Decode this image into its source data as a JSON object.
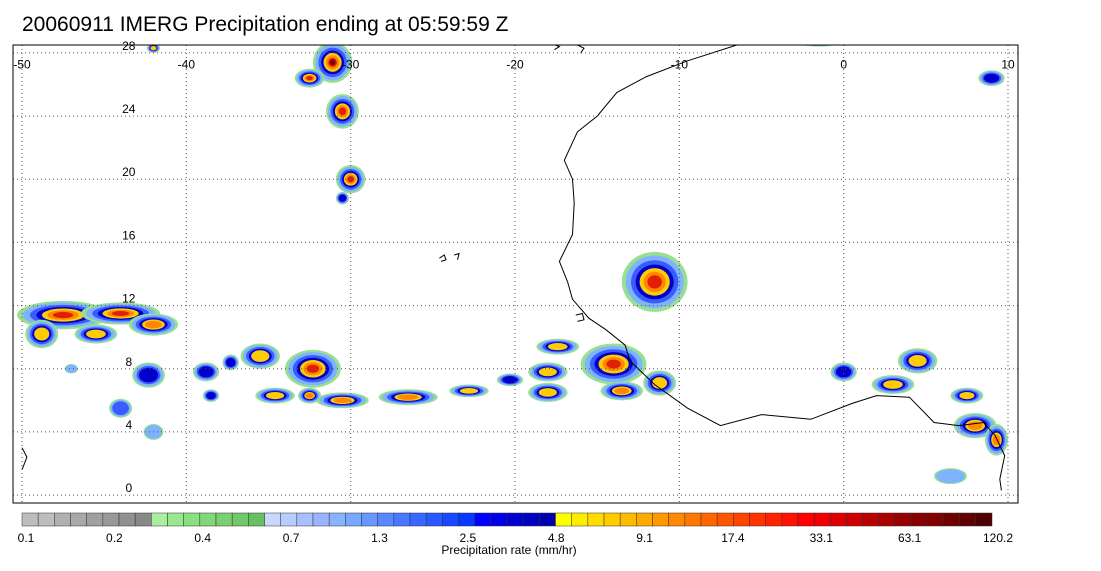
{
  "title": "20060911 IMERG Precipitation ending at 05:59:59 Z",
  "map": {
    "lon_range": [
      -50,
      10
    ],
    "lat_range": [
      -0.5,
      28.5
    ],
    "lon_ticks": [
      {
        "value": -50,
        "label": "-50"
      },
      {
        "value": -40,
        "label": "-40"
      },
      {
        "value": -30,
        "label": "-30"
      },
      {
        "value": -20,
        "label": "-20"
      },
      {
        "value": -10,
        "label": "-10"
      },
      {
        "value": 0,
        "label": "0"
      },
      {
        "value": 10,
        "label": "10"
      }
    ],
    "lat_ticks": [
      {
        "value": 0,
        "label": "0"
      },
      {
        "value": 4,
        "label": "4"
      },
      {
        "value": 8,
        "label": "8"
      },
      {
        "value": 12,
        "label": "12"
      },
      {
        "value": 16,
        "label": "16"
      },
      {
        "value": 20,
        "label": "20"
      },
      {
        "value": 24,
        "label": "24"
      },
      {
        "value": 28,
        "label": "28"
      }
    ],
    "precip_cells": [
      {
        "lon": -47.5,
        "lat": 11.4,
        "rlon": 2.8,
        "rlat": 0.9,
        "level": 0.75
      },
      {
        "lon": -44.0,
        "lat": 11.5,
        "rlon": 2.4,
        "rlat": 0.7,
        "level": 0.82
      },
      {
        "lon": -42.0,
        "lat": 10.8,
        "rlon": 1.5,
        "rlat": 0.7,
        "level": 0.7
      },
      {
        "lon": -45.5,
        "lat": 10.2,
        "rlon": 1.3,
        "rlat": 0.6,
        "level": 0.6
      },
      {
        "lon": -48.8,
        "lat": 10.2,
        "rlon": 1.0,
        "rlat": 0.9,
        "level": 0.55
      },
      {
        "lon": -38.8,
        "lat": 7.8,
        "rlon": 0.8,
        "rlat": 0.6,
        "level": 0.5
      },
      {
        "lon": -37.3,
        "lat": 8.4,
        "rlon": 0.5,
        "rlat": 0.5,
        "level": 0.5
      },
      {
        "lon": -35.5,
        "lat": 8.8,
        "rlon": 1.2,
        "rlat": 0.8,
        "level": 0.6
      },
      {
        "lon": -32.3,
        "lat": 8.0,
        "rlon": 1.7,
        "rlat": 1.2,
        "level": 0.85
      },
      {
        "lon": -34.6,
        "lat": 6.3,
        "rlon": 1.2,
        "rlat": 0.5,
        "level": 0.55
      },
      {
        "lon": -30.5,
        "lat": 6.0,
        "rlon": 1.6,
        "rlat": 0.5,
        "level": 0.72
      },
      {
        "lon": -32.5,
        "lat": 6.3,
        "rlon": 0.7,
        "rlat": 0.5,
        "level": 0.62
      },
      {
        "lon": -26.5,
        "lat": 6.2,
        "rlon": 1.8,
        "rlat": 0.5,
        "level": 0.65
      },
      {
        "lon": -22.8,
        "lat": 6.6,
        "rlon": 1.2,
        "rlat": 0.4,
        "level": 0.55
      },
      {
        "lon": -20.3,
        "lat": 7.3,
        "rlon": 0.8,
        "rlat": 0.4,
        "level": 0.5
      },
      {
        "lon": -18.0,
        "lat": 7.8,
        "rlon": 1.2,
        "rlat": 0.6,
        "level": 0.6
      },
      {
        "lon": -17.4,
        "lat": 9.4,
        "rlon": 1.3,
        "rlat": 0.5,
        "level": 0.55
      },
      {
        "lon": -18.0,
        "lat": 6.5,
        "rlon": 1.2,
        "rlat": 0.6,
        "level": 0.6
      },
      {
        "lon": -14.0,
        "lat": 8.3,
        "rlon": 2.0,
        "rlat": 1.3,
        "level": 0.82
      },
      {
        "lon": -13.5,
        "lat": 6.6,
        "rlon": 1.3,
        "rlat": 0.6,
        "level": 0.7
      },
      {
        "lon": -11.2,
        "lat": 7.1,
        "rlon": 1.0,
        "rlat": 0.8,
        "level": 0.6
      },
      {
        "lon": -11.5,
        "lat": 13.5,
        "rlon": 2.0,
        "rlat": 1.9,
        "level": 0.78
      },
      {
        "lon": -31.1,
        "lat": 27.4,
        "rlon": 1.2,
        "rlat": 1.3,
        "level": 0.97
      },
      {
        "lon": -32.5,
        "lat": 26.4,
        "rlon": 0.9,
        "rlat": 0.6,
        "level": 0.8
      },
      {
        "lon": -30.5,
        "lat": 24.3,
        "rlon": 1.0,
        "rlat": 1.1,
        "level": 0.78
      },
      {
        "lon": -30.0,
        "lat": 20.0,
        "rlon": 0.9,
        "rlat": 0.9,
        "level": 0.75
      },
      {
        "lon": -30.5,
        "lat": 18.8,
        "rlon": 0.4,
        "rlat": 0.4,
        "level": 0.45
      },
      {
        "lon": -42.0,
        "lat": 4.0,
        "rlon": 0.6,
        "rlat": 0.5,
        "level": 0.3
      },
      {
        "lon": -42.3,
        "lat": 7.6,
        "rlon": 1.0,
        "rlat": 0.8,
        "level": 0.48
      },
      {
        "lon": -38.5,
        "lat": 6.3,
        "rlon": 0.5,
        "rlat": 0.4,
        "level": 0.45
      },
      {
        "lon": -47.0,
        "lat": 8.0,
        "rlon": 0.4,
        "rlat": 0.3,
        "level": 0.3
      },
      {
        "lon": 0.0,
        "lat": 7.8,
        "rlon": 0.8,
        "rlat": 0.6,
        "level": 0.5
      },
      {
        "lon": 3.0,
        "lat": 7.0,
        "rlon": 1.3,
        "rlat": 0.6,
        "level": 0.55
      },
      {
        "lon": 4.5,
        "lat": 8.5,
        "rlon": 1.2,
        "rlat": 0.8,
        "level": 0.6
      },
      {
        "lon": 7.5,
        "lat": 6.3,
        "rlon": 1.0,
        "rlat": 0.5,
        "level": 0.55
      },
      {
        "lon": 8.0,
        "lat": 4.4,
        "rlon": 1.3,
        "rlat": 0.8,
        "level": 0.72
      },
      {
        "lon": 9.3,
        "lat": 3.5,
        "rlon": 0.7,
        "rlat": 1.0,
        "level": 0.7
      },
      {
        "lon": 9.0,
        "lat": 26.4,
        "rlon": 0.8,
        "rlat": 0.5,
        "level": 0.5
      },
      {
        "lon": 6.5,
        "lat": 1.2,
        "rlon": 1.0,
        "rlat": 0.5,
        "level": 0.25
      },
      {
        "lon": -1.5,
        "lat": 28.7,
        "rlon": 1.3,
        "rlat": 0.3,
        "level": 0.5
      },
      {
        "lon": -42.0,
        "lat": 28.3,
        "rlon": 0.4,
        "rlat": 0.3,
        "level": 0.55
      },
      {
        "lon": -44.0,
        "lat": 5.5,
        "rlon": 0.7,
        "rlat": 0.6,
        "level": 0.35
      }
    ],
    "land_polygons": [
      {
        "name": "west-africa-coast",
        "points": [
          [
            -6.5,
            28.5
          ],
          [
            -9.5,
            27.5
          ],
          [
            -12,
            26.5
          ],
          [
            -13.8,
            25.5
          ],
          [
            -15,
            24
          ],
          [
            -16.2,
            23
          ],
          [
            -17,
            21.2
          ],
          [
            -16.5,
            20
          ],
          [
            -16.4,
            18.5
          ],
          [
            -16.5,
            16.5
          ],
          [
            -17.3,
            14.8
          ],
          [
            -16.8,
            13.5
          ],
          [
            -16.5,
            12.4
          ],
          [
            -15.5,
            11.2
          ],
          [
            -14.5,
            10.5
          ],
          [
            -13.3,
            9.5
          ],
          [
            -13,
            8.5
          ],
          [
            -11.5,
            7
          ],
          [
            -9.5,
            5.5
          ],
          [
            -7.5,
            4.4
          ],
          [
            -5,
            5.1
          ],
          [
            -2,
            4.8
          ],
          [
            0.5,
            5.8
          ],
          [
            2,
            6.3
          ],
          [
            4,
            6.2
          ],
          [
            5.5,
            4.6
          ],
          [
            7,
            4.4
          ],
          [
            8.5,
            4.6
          ],
          [
            9.2,
            3.8
          ],
          [
            9.8,
            2.5
          ],
          [
            9.5,
            1.0
          ],
          [
            9.6,
            0.3
          ]
        ]
      },
      {
        "name": "brazil-coast",
        "points": [
          [
            -50,
            3.0
          ],
          [
            -49.7,
            2.4
          ],
          [
            -50,
            1.6
          ]
        ]
      },
      {
        "name": "cape-verde-1",
        "points": [
          [
            -24.6,
            15.0
          ],
          [
            -24.3,
            15.2
          ],
          [
            -24.2,
            14.9
          ],
          [
            -24.5,
            14.8
          ]
        ]
      },
      {
        "name": "cape-verde-2",
        "points": [
          [
            -23.7,
            15.2
          ],
          [
            -23.4,
            15.3
          ],
          [
            -23.5,
            14.9
          ]
        ]
      },
      {
        "name": "canary-1",
        "points": [
          [
            -17.8,
            28.6
          ],
          [
            -17.3,
            28.4
          ],
          [
            -17.6,
            28.2
          ]
        ]
      },
      {
        "name": "canary-2",
        "points": [
          [
            -16.2,
            28.5
          ],
          [
            -15.8,
            28.3
          ],
          [
            -16.0,
            28.0
          ]
        ]
      },
      {
        "name": "bijagos",
        "points": [
          [
            -16.3,
            11.4
          ],
          [
            -15.9,
            11.5
          ],
          [
            -15.8,
            11.1
          ],
          [
            -16.2,
            11.0
          ]
        ]
      }
    ],
    "colorbar": {
      "colors": [
        "#bdbdbd",
        "#bdbdbd",
        "#b0b0b0",
        "#a8a8a8",
        "#a0a0a0",
        "#989898",
        "#909090",
        "#888888",
        "#a8f0a0",
        "#98e890",
        "#88e080",
        "#80d878",
        "#78d070",
        "#70c868",
        "#68c060",
        "#c8d8ff",
        "#b8ccff",
        "#a8c0ff",
        "#98b4ff",
        "#88b4ff",
        "#78a8ff",
        "#6898ff",
        "#5888ff",
        "#4878ff",
        "#3868ff",
        "#2858ff",
        "#1848ff",
        "#0838ff",
        "#0000ff",
        "#0000e8",
        "#0000d0",
        "#0000c0",
        "#0000b0",
        "#ffff00",
        "#ffee00",
        "#ffdd00",
        "#ffcc00",
        "#ffbb00",
        "#ffaa00",
        "#ff9900",
        "#ff8800",
        "#ff7700",
        "#ff6600",
        "#ff5500",
        "#ff4400",
        "#ff3300",
        "#ff2200",
        "#ff1100",
        "#ff0000",
        "#ee0000",
        "#dd0000",
        "#cc0000",
        "#bb0000",
        "#aa0000",
        "#990000",
        "#880000",
        "#800000",
        "#700000",
        "#600000",
        "#500000"
      ],
      "tick_labels": [
        "0.1",
        "0.2",
        "0.4",
        "0.7",
        "1.3",
        "2.5",
        "4.8",
        "9.1",
        "17.4",
        "33.1",
        "63.1",
        "120.2"
      ],
      "units_label": "Precipitation rate (mm/hr)"
    }
  }
}
